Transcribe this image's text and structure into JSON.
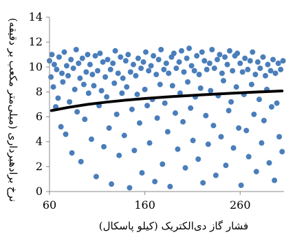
{
  "chart_data": {
    "type": "scatter",
    "title": "",
    "xlabel": "فشار گاز دی‌الکتریک (کیلو پاسکال)",
    "ylabel": "نرخ برادهبرداری (میلی‌متر مکعب بر دقیقه)",
    "xlim": [
      60,
      306
    ],
    "ylim": [
      0,
      14
    ],
    "x_ticks": [
      60,
      160,
      260
    ],
    "y_ticks": [
      0,
      2,
      4,
      6,
      8,
      10,
      12,
      14
    ],
    "grid": false,
    "legend": "none",
    "colors": {
      "points": "#4a7ebb",
      "trend": "#000000"
    },
    "series": [
      {
        "kind": "scatter",
        "x": [
          60,
          61.5,
          62.5,
          64,
          65,
          66.5,
          67.5,
          69,
          70,
          72,
          73,
          74,
          75.5,
          77,
          78,
          79.5,
          81,
          82.5,
          83.5,
          85,
          86.5,
          88,
          89,
          90.5,
          92,
          93,
          94.5,
          96,
          97,
          98.5,
          100,
          101,
          102.5,
          104,
          105,
          106.5,
          108,
          109,
          110.5,
          112,
          113,
          114.5,
          116,
          117,
          118.5,
          120,
          121,
          122.5,
          124,
          125,
          126.5,
          128,
          129,
          130.5,
          132,
          133,
          134.5,
          136,
          137,
          138.5,
          140,
          141,
          142.5,
          144,
          145,
          146.5,
          148,
          149,
          150.5,
          152,
          153,
          154.5,
          156,
          157,
          158.5,
          160,
          161,
          162.5,
          164,
          165,
          166.5,
          168,
          169,
          170.5,
          172,
          173,
          174.5,
          176,
          177,
          178.5,
          180,
          181,
          182.5,
          184,
          185,
          186.5,
          188,
          189,
          190.5,
          192,
          193,
          194.5,
          196,
          197,
          198.5,
          200,
          201,
          202.5,
          204,
          205,
          206.5,
          208,
          209,
          210.5,
          212,
          213,
          214.5,
          216,
          217,
          218.5,
          220,
          221,
          222.5,
          224,
          225,
          226.5,
          228,
          229,
          230.5,
          232,
          233,
          234.5,
          236,
          237,
          238.5,
          240,
          241,
          242.5,
          244,
          245,
          246.5,
          248,
          249,
          250.5,
          252,
          253,
          254.5,
          256,
          257,
          258.5,
          260,
          261,
          262.5,
          264,
          265,
          266.5,
          268,
          269,
          270.5,
          272,
          273,
          274.5,
          276,
          277,
          278.5,
          280,
          281,
          282.5,
          284,
          285,
          286.5,
          288,
          289,
          290.5,
          292,
          293,
          294.5,
          296,
          297,
          298.5,
          300,
          301,
          302.5,
          304,
          305
        ],
        "y": [
          10.5,
          9.2,
          11,
          8.4,
          10.2,
          6.8,
          9.8,
          7.5,
          10.8,
          5.2,
          9.5,
          8.8,
          11.2,
          4.6,
          10.1,
          9.3,
          7.2,
          10.6,
          3.1,
          9.9,
          8.2,
          11.4,
          6.4,
          10.3,
          9.1,
          2.4,
          10.7,
          8.6,
          5.8,
          9.6,
          11,
          7.9,
          10.2,
          4.2,
          9.4,
          8.5,
          10.9,
          1.2,
          9.7,
          6.9,
          11.1,
          8.1,
          10.4,
          3.6,
          9.2,
          7.6,
          10.6,
          5.1,
          9.8,
          0.6,
          10.3,
          8.7,
          11.3,
          6.2,
          9.5,
          2.9,
          10.8,
          7.9,
          9.1,
          4.5,
          10.5,
          8.4,
          11,
          0.3,
          9.6,
          6.6,
          10.2,
          3.3,
          9.3,
          7.8,
          10.7,
          5.5,
          9.9,
          1.5,
          10.4,
          8.2,
          11.2,
          6.9,
          9.7,
          3.9,
          10.1,
          7.4,
          10.9,
          0.8,
          9.4,
          5.9,
          10.6,
          8.6,
          11.4,
          2.2,
          9.8,
          7.1,
          10.3,
          4.8,
          9.5,
          0.4,
          10.8,
          8.5,
          11.1,
          6.3,
          9.9,
          3.4,
          10.4,
          7.9,
          11.3,
          5.6,
          9.6,
          1.9,
          10.7,
          8.8,
          11.5,
          6.7,
          10.1,
          4.1,
          9.7,
          7.6,
          10.9,
          2.6,
          9.4,
          8.3,
          11.2,
          0.7,
          10.5,
          6.1,
          9.8,
          3.8,
          10.3,
          8.1,
          11.4,
          5.3,
          9.9,
          1.3,
          10.6,
          7.7,
          11,
          4.4,
          9.5,
          8.9,
          10.8,
          2.1,
          10.2,
          6.5,
          11.3,
          7.2,
          9.7,
          3.5,
          10.9,
          8.4,
          11.1,
          5.1,
          10.3,
          0.5,
          9.6,
          7.8,
          10.7,
          4.9,
          9.8,
          2.8,
          10.5,
          8.6,
          11.2,
          6.2,
          9.4,
          1.6,
          10.4,
          7.4,
          9.9,
          3.9,
          10.8,
          5.7,
          9.3,
          8.2,
          10.2,
          2.3,
          9.7,
          6.8,
          10.6,
          0.9,
          9.5,
          7.1,
          10.3,
          4.4,
          9.8,
          3.2,
          10.5
        ]
      },
      {
        "kind": "trendline",
        "name": "",
        "x": [
          62,
          80,
          100,
          120,
          140,
          160,
          180,
          200,
          220,
          240,
          260,
          280,
          304
        ],
        "y": [
          6.5,
          6.76,
          7.0,
          7.18,
          7.34,
          7.47,
          7.58,
          7.68,
          7.77,
          7.85,
          7.93,
          8.0,
          8.08
        ]
      }
    ]
  }
}
